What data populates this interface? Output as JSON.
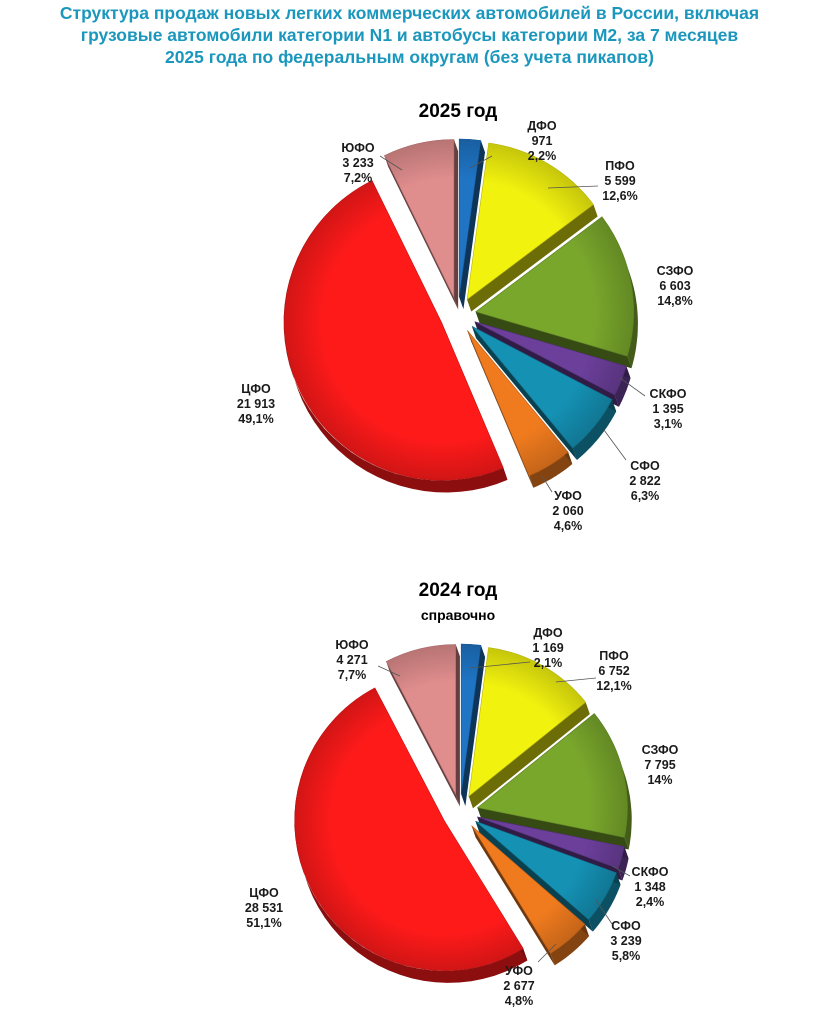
{
  "title": {
    "lines": [
      "Структура продаж новых легких коммерческих автомобилей в России, включая",
      "грузовые автомобили категории N1 и автобусы категории M2, за 7 месяцев",
      "2025 года по федеральным округам (без учета пикапов)"
    ]
  },
  "chart_data": [
    {
      "type": "pie",
      "title": "2025 год",
      "subtitle": "",
      "slices": [
        {
          "name": "ДФО",
          "value": 971,
          "value_label": "971",
          "pct_label": "2,2%",
          "percent": 2.2,
          "color": "#1f74c4"
        },
        {
          "name": "ПФО",
          "value": 5599,
          "value_label": "5 599",
          "pct_label": "12,6%",
          "percent": 12.6,
          "color": "#f2f20f"
        },
        {
          "name": "СЗФО",
          "value": 6603,
          "value_label": "6 603",
          "pct_label": "14,8%",
          "percent": 14.8,
          "color": "#79a72c"
        },
        {
          "name": "СКФО",
          "value": 1395,
          "value_label": "1 395",
          "pct_label": "3,1%",
          "percent": 3.1,
          "color": "#6b3f9a"
        },
        {
          "name": "СФО",
          "value": 2822,
          "value_label": "2 822",
          "pct_label": "6,3%",
          "percent": 6.3,
          "color": "#1591b4"
        },
        {
          "name": "УФО",
          "value": 2060,
          "value_label": "2 060",
          "pct_label": "4,6%",
          "percent": 4.6,
          "color": "#f07b1e"
        },
        {
          "name": "ЦФО",
          "value": 21913,
          "value_label": "21 913",
          "pct_label": "49,1%",
          "percent": 49.1,
          "color": "#ff1a1a"
        },
        {
          "name": "ЮФО",
          "value": 3233,
          "value_label": "3 233",
          "pct_label": "7,2%",
          "percent": 7.2,
          "color": "#e08d8d"
        }
      ]
    },
    {
      "type": "pie",
      "title": "2024 год",
      "subtitle": "справочно",
      "slices": [
        {
          "name": "ДФО",
          "value": 1169,
          "value_label": "1 169",
          "pct_label": "2,1%",
          "percent": 2.1,
          "color": "#1f74c4"
        },
        {
          "name": "ПФО",
          "value": 6752,
          "value_label": "6 752",
          "pct_label": "12,1%",
          "percent": 12.1,
          "color": "#f2f20f"
        },
        {
          "name": "СЗФО",
          "value": 7795,
          "value_label": "7 795",
          "pct_label": "14%",
          "percent": 14.0,
          "color": "#79a72c"
        },
        {
          "name": "СКФО",
          "value": 1348,
          "value_label": "1 348",
          "pct_label": "2,4%",
          "percent": 2.4,
          "color": "#6b3f9a"
        },
        {
          "name": "СФО",
          "value": 3239,
          "value_label": "3 239",
          "pct_label": "5,8%",
          "percent": 5.8,
          "color": "#1591b4"
        },
        {
          "name": "УФО",
          "value": 2677,
          "value_label": "2 677",
          "pct_label": "4,8%",
          "percent": 4.8,
          "color": "#f07b1e"
        },
        {
          "name": "ЦФО",
          "value": 28531,
          "value_label": "28 531",
          "pct_label": "51,1%",
          "percent": 51.1,
          "color": "#ff1a1a"
        },
        {
          "name": "ЮФО",
          "value": 4271,
          "value_label": "4 271",
          "pct_label": "7,7%",
          "percent": 7.7,
          "color": "#e08d8d"
        }
      ]
    }
  ]
}
